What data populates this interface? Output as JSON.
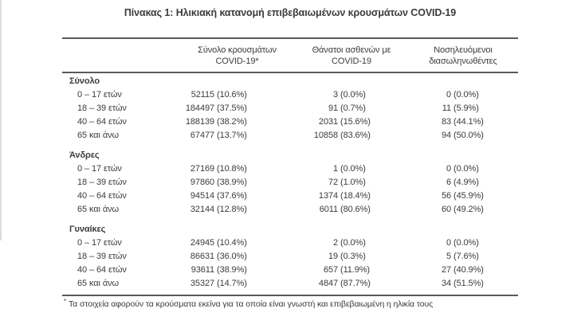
{
  "page": {
    "background_color": "#ffffff",
    "text_color": "#3b3b3b",
    "rule_color": "#5a5a5a"
  },
  "title": "Πίνακας 1: Ηλικιακή κατανομή επιβεβαιωμένων κρουσμάτων COVID-19",
  "table": {
    "columns": [
      {
        "line1": "Σύνολο κρουσμάτων",
        "line2": "COVID-19*"
      },
      {
        "line1": "Θάνατοι ασθενών με",
        "line2": "COVID-19"
      },
      {
        "line1": "Νοσηλευόμενοι",
        "line2": "διασωληνωθέντες"
      }
    ],
    "sections": [
      {
        "name": "Σύνολο",
        "rows": [
          {
            "age": "0 – 17 ετών",
            "cases": "52115",
            "cases_pct": "(10.6%)",
            "deaths": "3",
            "deaths_pct": "(0.0%)",
            "intubated": "0",
            "intubated_pct": "(0.0%)"
          },
          {
            "age": "18 – 39 ετών",
            "cases": "184497",
            "cases_pct": "(37.5%)",
            "deaths": "91",
            "deaths_pct": "(0.7%)",
            "intubated": "11",
            "intubated_pct": "(5.9%)"
          },
          {
            "age": "40 – 64 ετών",
            "cases": "188139",
            "cases_pct": "(38.2%)",
            "deaths": "2031",
            "deaths_pct": "(15.6%)",
            "intubated": "83",
            "intubated_pct": "(44.1%)"
          },
          {
            "age": "65 και άνω",
            "cases": "67477",
            "cases_pct": "(13.7%)",
            "deaths": "10858",
            "deaths_pct": "(83.6%)",
            "intubated": "94",
            "intubated_pct": "(50.0%)"
          }
        ]
      },
      {
        "name": "Άνδρες",
        "rows": [
          {
            "age": "0 – 17 ετών",
            "cases": "27169",
            "cases_pct": "(10.8%)",
            "deaths": "1",
            "deaths_pct": "(0.0%)",
            "intubated": "0",
            "intubated_pct": "(0.0%)"
          },
          {
            "age": "18 – 39 ετών",
            "cases": "97860",
            "cases_pct": "(38.9%)",
            "deaths": "72",
            "deaths_pct": "(1.0%)",
            "intubated": "6",
            "intubated_pct": "(4.9%)"
          },
          {
            "age": "40 – 64 ετών",
            "cases": "94514",
            "cases_pct": "(37.6%)",
            "deaths": "1374",
            "deaths_pct": "(18.4%)",
            "intubated": "56",
            "intubated_pct": "(45.9%)"
          },
          {
            "age": "65 και άνω",
            "cases": "32144",
            "cases_pct": "(12.8%)",
            "deaths": "6011",
            "deaths_pct": "(80.6%)",
            "intubated": "60",
            "intubated_pct": "(49.2%)"
          }
        ]
      },
      {
        "name": "Γυναίκες",
        "rows": [
          {
            "age": "0 – 17 ετών",
            "cases": "24945",
            "cases_pct": "(10.4%)",
            "deaths": "2",
            "deaths_pct": "(0.0%)",
            "intubated": "0",
            "intubated_pct": "(0.0%)"
          },
          {
            "age": "18 – 39 ετών",
            "cases": "86631",
            "cases_pct": "(36.0%)",
            "deaths": "19",
            "deaths_pct": "(0.3%)",
            "intubated": "5",
            "intubated_pct": "(7.6%)"
          },
          {
            "age": "40 – 64 ετών",
            "cases": "93611",
            "cases_pct": "(38.9%)",
            "deaths": "657",
            "deaths_pct": "(11.9%)",
            "intubated": "27",
            "intubated_pct": "(40.9%)"
          },
          {
            "age": "65 και άνω",
            "cases": "35327",
            "cases_pct": "(14.7%)",
            "deaths": "4847",
            "deaths_pct": "(87.7%)",
            "intubated": "34",
            "intubated_pct": "(51.5%)"
          }
        ]
      }
    ]
  },
  "footnote": {
    "marker": "*",
    "text": "Τα στοιχεία αφορούν τα κρούσματα εκείνα για τα οποία είναι γνωστή και επιβεβαιωμένη η ηλικία τους"
  }
}
